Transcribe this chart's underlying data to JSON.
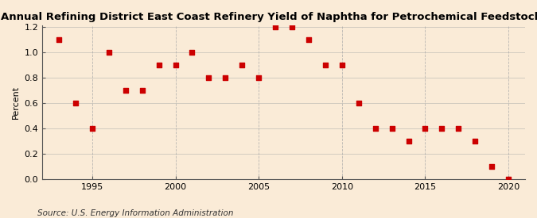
{
  "title": "Annual Refining District East Coast Refinery Yield of Naphtha for Petrochemical Feedstock Use",
  "ylabel": "Percent",
  "source": "Source: U.S. Energy Information Administration",
  "years": [
    1993,
    1994,
    1995,
    1996,
    1997,
    1998,
    1999,
    2000,
    2001,
    2002,
    2003,
    2004,
    2005,
    2006,
    2007,
    2008,
    2009,
    2010,
    2011,
    2012,
    2013,
    2014,
    2015,
    2016,
    2017,
    2018,
    2019,
    2020
  ],
  "values": [
    1.1,
    0.6,
    0.4,
    1.0,
    0.7,
    0.7,
    0.9,
    0.9,
    1.0,
    0.8,
    0.8,
    0.9,
    0.8,
    1.2,
    1.2,
    1.1,
    0.9,
    0.9,
    0.6,
    0.4,
    0.4,
    0.3,
    0.4,
    0.4,
    0.4,
    0.3,
    0.1,
    0.0
  ],
  "marker_color": "#cc0000",
  "marker_size": 4,
  "background_color": "#faebd7",
  "hgrid_color": "#aaaaaa",
  "vgrid_color": "#aaaaaa",
  "ylim": [
    0.0,
    1.2
  ],
  "yticks": [
    0.0,
    0.2,
    0.4,
    0.6,
    0.8,
    1.0,
    1.2
  ],
  "xlim": [
    1992.0,
    2021.0
  ],
  "xticks": [
    1995,
    2000,
    2005,
    2010,
    2015,
    2020
  ],
  "title_fontsize": 9.5,
  "label_fontsize": 8,
  "tick_fontsize": 8,
  "source_fontsize": 7.5
}
